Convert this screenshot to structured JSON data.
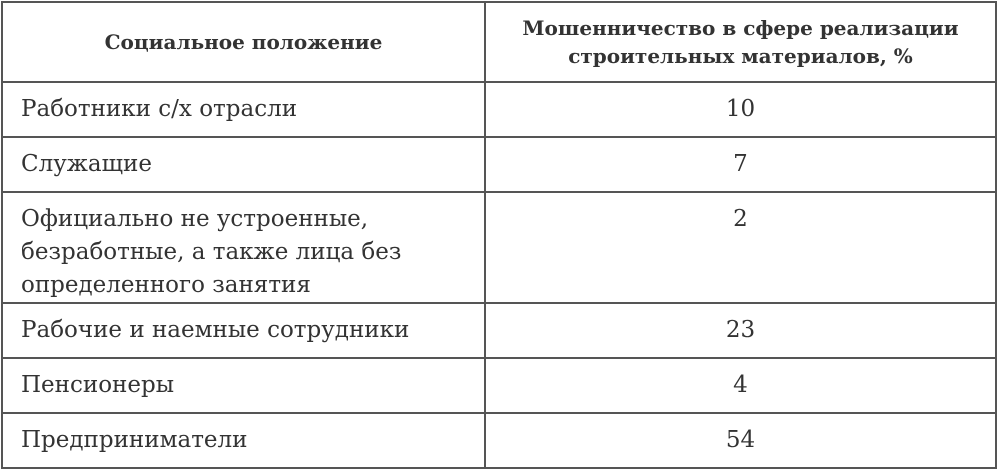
{
  "table": {
    "headers": [
      "Социальное положение",
      "Мошенничество в сфере реализации строительных материалов, %"
    ],
    "rows": [
      {
        "label": "Работники с/х отрасли",
        "value": "10"
      },
      {
        "label": "Служащие",
        "value": "7"
      },
      {
        "label": "Официально не устроенные, безработные, а также лица без определенного занятия",
        "value": "2"
      },
      {
        "label": "Рабочие и наемные сотрудники",
        "value": "23"
      },
      {
        "label": "Пенсионеры",
        "value": "4"
      },
      {
        "label": "Предприниматели",
        "value": "54"
      }
    ]
  }
}
